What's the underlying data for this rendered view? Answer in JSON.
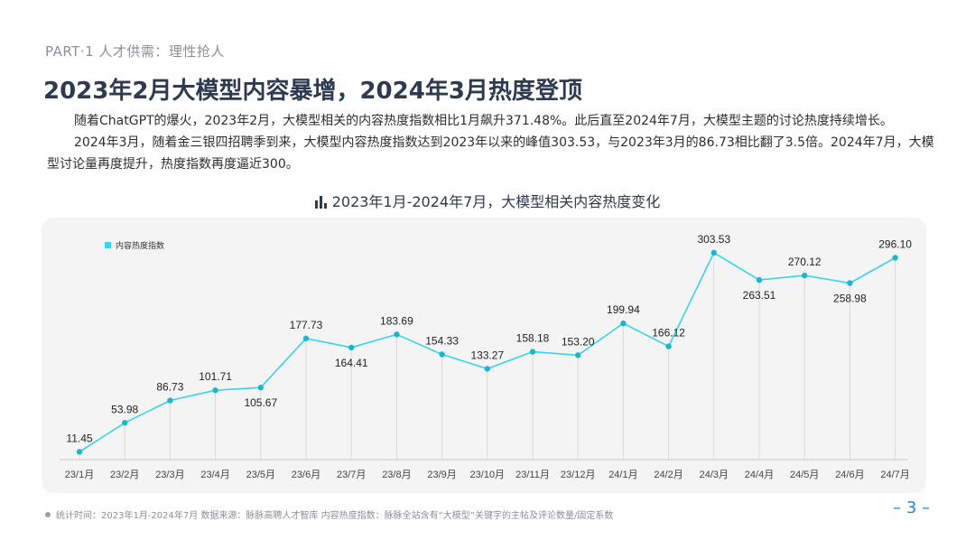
{
  "header": {
    "part_label": "PART·1  人才供需：理性抢人",
    "title": "2023年2月大模型内容暴增，2024年3月热度登顶"
  },
  "body": {
    "para1": "随着ChatGPT的爆火，2023年2月，大模型相关的内容热度指数相比1月飙升371.48%。此后直至2024年7月，大模型主题的讨论热度持续增长。",
    "para2": "2024年3月，随着金三银四招聘季到来，大模型内容热度指数达到2023年以来的峰值303.53，与2023年3月的86.73相比翻了3.5倍。2024年7月，大模型讨论量再度提升，热度指数再度逼近300。"
  },
  "chart_header": {
    "title": "2023年1月-2024年7月，大模型相关内容热度变化",
    "icon": "bar-chart-icon"
  },
  "chart_data": {
    "type": "line",
    "title": "2023年1月-2024年7月，大模型相关内容热度变化",
    "categories": [
      "23/1月",
      "23/2月",
      "23/3月",
      "23/4月",
      "23/5月",
      "23/6月",
      "23/7月",
      "23/8月",
      "23/9月",
      "23/10月",
      "23/11月",
      "23/12月",
      "24/1月",
      "24/2月",
      "24/3月",
      "24/4月",
      "24/5月",
      "24/6月",
      "24/7月"
    ],
    "series": [
      {
        "name": "内容热度指数",
        "values": [
          11.45,
          53.98,
          86.73,
          101.71,
          105.67,
          177.73,
          164.41,
          183.69,
          154.33,
          133.27,
          158.18,
          153.2,
          199.94,
          166.12,
          303.53,
          263.51,
          270.12,
          258.98,
          296.1
        ],
        "labels": [
          "11.45",
          "53.98",
          "86.73",
          "101.71",
          "105.67",
          "177.73",
          "164.41",
          "183.69",
          "154.33",
          "133.27",
          "158.18",
          "153.20",
          "199.94",
          "166.12",
          "303.53",
          "263.51",
          "270.12",
          "258.98",
          "296.10"
        ],
        "label_position": [
          "above",
          "above",
          "above",
          "above",
          "below",
          "above",
          "below",
          "above",
          "above",
          "above",
          "above",
          "above",
          "above",
          "above",
          "above",
          "below",
          "above",
          "below",
          "above"
        ]
      }
    ],
    "ylim": [
      0,
      310
    ],
    "legend": "top-left",
    "grid": false,
    "colors": {
      "line": "#3ad3e8",
      "marker": "#19b7cf",
      "dropline": "#d9d9d9",
      "axis": "#c9c9c9"
    }
  },
  "footer": {
    "note": "统计时间：2023年1月-2024年7月    数据来源：脉脉高聘人才智库    内容热度指数：脉脉全站含有“大模型”关键字的主帖及评论数量/固定系数",
    "page_number": "– 3 –"
  }
}
